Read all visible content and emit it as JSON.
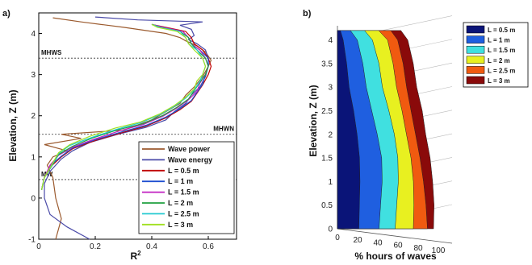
{
  "chart_data": [
    {
      "panel": "a)",
      "type": "line",
      "xlabel": "R",
      "xlabel_sup": "2",
      "ylabel": "Elevation, Z (m)",
      "xlim": [
        0,
        0.7
      ],
      "ylim": [
        -1,
        4.5
      ],
      "xticks": [
        "0",
        "0.2",
        "0.4",
        "0.6"
      ],
      "yticks": [
        "-1",
        "0",
        "1",
        "2",
        "3",
        "4"
      ],
      "reference_lines": [
        {
          "label": "MHWS",
          "y": 3.4,
          "label_side": "left"
        },
        {
          "label": "MHWN",
          "y": 1.55,
          "label_side": "right"
        },
        {
          "label": "MW",
          "y": 0.45,
          "label_side": "left"
        }
      ],
      "legend_position": "lower-right",
      "series": [
        {
          "name": "Wave power",
          "color": "#9b5a2e",
          "points": [
            [
              0.06,
              -1.0
            ],
            [
              0.08,
              -0.5
            ],
            [
              0.06,
              0.0
            ],
            [
              0.05,
              0.5
            ],
            [
              0.03,
              0.8
            ],
            [
              0.05,
              1.0
            ],
            [
              0.1,
              1.15
            ],
            [
              0.02,
              1.3
            ],
            [
              0.15,
              1.45
            ],
            [
              0.08,
              1.55
            ],
            [
              0.3,
              1.65
            ],
            [
              0.4,
              1.9
            ],
            [
              0.45,
              2.1
            ],
            [
              0.5,
              2.3
            ],
            [
              0.52,
              2.5
            ],
            [
              0.55,
              2.7
            ],
            [
              0.58,
              2.95
            ],
            [
              0.6,
              3.2
            ],
            [
              0.61,
              3.35
            ],
            [
              0.59,
              3.55
            ],
            [
              0.56,
              3.7
            ],
            [
              0.52,
              3.82
            ],
            [
              0.5,
              3.9
            ],
            [
              0.45,
              4.0
            ],
            [
              0.3,
              4.15
            ],
            [
              0.15,
              4.28
            ],
            [
              0.05,
              4.38
            ]
          ]
        },
        {
          "name": "Wave energy",
          "color": "#4a4aa8",
          "points": [
            [
              0.18,
              -1.0
            ],
            [
              0.1,
              -0.7
            ],
            [
              0.04,
              -0.4
            ],
            [
              0.02,
              0.0
            ],
            [
              0.02,
              0.35
            ],
            [
              0.04,
              0.65
            ],
            [
              0.08,
              0.95
            ],
            [
              0.12,
              1.15
            ],
            [
              0.18,
              1.35
            ],
            [
              0.28,
              1.55
            ],
            [
              0.38,
              1.72
            ],
            [
              0.45,
              1.9
            ],
            [
              0.48,
              2.1
            ],
            [
              0.52,
              2.3
            ],
            [
              0.54,
              2.5
            ],
            [
              0.57,
              2.7
            ],
            [
              0.59,
              2.95
            ],
            [
              0.6,
              3.2
            ],
            [
              0.6,
              3.4
            ],
            [
              0.59,
              3.6
            ],
            [
              0.56,
              3.75
            ],
            [
              0.53,
              3.85
            ],
            [
              0.55,
              3.95
            ],
            [
              0.54,
              4.1
            ],
            [
              0.5,
              4.2
            ],
            [
              0.58,
              4.28
            ],
            [
              0.35,
              4.33
            ],
            [
              0.2,
              4.4
            ]
          ]
        },
        {
          "name": "L = 0.5 m",
          "color": "#c00000",
          "points": [
            [
              0.01,
              0.2
            ],
            [
              0.02,
              0.5
            ],
            [
              0.04,
              0.75
            ],
            [
              0.08,
              1.0
            ],
            [
              0.12,
              1.2
            ],
            [
              0.2,
              1.4
            ],
            [
              0.3,
              1.6
            ],
            [
              0.38,
              1.75
            ],
            [
              0.45,
              1.95
            ],
            [
              0.5,
              2.15
            ],
            [
              0.54,
              2.35
            ],
            [
              0.56,
              2.55
            ],
            [
              0.58,
              2.75
            ],
            [
              0.6,
              3.0
            ],
            [
              0.61,
              3.2
            ],
            [
              0.6,
              3.4
            ],
            [
              0.58,
              3.6
            ],
            [
              0.55,
              3.75
            ],
            [
              0.54,
              3.9
            ],
            [
              0.52,
              4.05
            ],
            [
              0.45,
              4.15
            ],
            [
              0.4,
              4.22
            ]
          ]
        },
        {
          "name": "L = 1 m",
          "color": "#1f4fd0",
          "points": [
            [
              0.01,
              0.2
            ],
            [
              0.02,
              0.5
            ],
            [
              0.04,
              0.78
            ],
            [
              0.08,
              1.02
            ],
            [
              0.12,
              1.22
            ],
            [
              0.2,
              1.42
            ],
            [
              0.3,
              1.62
            ],
            [
              0.38,
              1.77
            ],
            [
              0.45,
              1.97
            ],
            [
              0.5,
              2.17
            ],
            [
              0.54,
              2.37
            ],
            [
              0.56,
              2.57
            ],
            [
              0.58,
              2.77
            ],
            [
              0.59,
              3.0
            ],
            [
              0.6,
              3.2
            ],
            [
              0.6,
              3.4
            ],
            [
              0.57,
              3.6
            ],
            [
              0.54,
              3.75
            ],
            [
              0.53,
              3.9
            ],
            [
              0.51,
              4.05
            ],
            [
              0.44,
              4.15
            ],
            [
              0.4,
              4.22
            ]
          ]
        },
        {
          "name": "L = 1.5 m",
          "color": "#c020c0",
          "points": [
            [
              0.01,
              0.2
            ],
            [
              0.02,
              0.5
            ],
            [
              0.04,
              0.8
            ],
            [
              0.07,
              1.04
            ],
            [
              0.12,
              1.24
            ],
            [
              0.2,
              1.44
            ],
            [
              0.29,
              1.64
            ],
            [
              0.37,
              1.79
            ],
            [
              0.44,
              1.99
            ],
            [
              0.49,
              2.19
            ],
            [
              0.53,
              2.39
            ],
            [
              0.56,
              2.59
            ],
            [
              0.57,
              2.79
            ],
            [
              0.59,
              3.0
            ],
            [
              0.6,
              3.2
            ],
            [
              0.59,
              3.4
            ],
            [
              0.57,
              3.6
            ],
            [
              0.54,
              3.75
            ],
            [
              0.53,
              3.9
            ],
            [
              0.51,
              4.05
            ],
            [
              0.44,
              4.15
            ],
            [
              0.4,
              4.22
            ]
          ]
        },
        {
          "name": "L = 2 m",
          "color": "#20a040",
          "points": [
            [
              0.01,
              0.2
            ],
            [
              0.02,
              0.5
            ],
            [
              0.05,
              0.82
            ],
            [
              0.07,
              1.06
            ],
            [
              0.12,
              1.26
            ],
            [
              0.19,
              1.46
            ],
            [
              0.28,
              1.66
            ],
            [
              0.37,
              1.81
            ],
            [
              0.44,
              2.01
            ],
            [
              0.49,
              2.21
            ],
            [
              0.53,
              2.41
            ],
            [
              0.55,
              2.61
            ],
            [
              0.57,
              2.81
            ],
            [
              0.59,
              3.0
            ],
            [
              0.6,
              3.2
            ],
            [
              0.59,
              3.4
            ],
            [
              0.56,
              3.6
            ],
            [
              0.54,
              3.75
            ],
            [
              0.53,
              3.9
            ],
            [
              0.5,
              4.05
            ],
            [
              0.43,
              4.15
            ],
            [
              0.4,
              4.22
            ]
          ]
        },
        {
          "name": "L = 2.5 m",
          "color": "#20c8d0",
          "points": [
            [
              0.01,
              0.2
            ],
            [
              0.02,
              0.5
            ],
            [
              0.05,
              0.84
            ],
            [
              0.07,
              1.08
            ],
            [
              0.11,
              1.28
            ],
            [
              0.19,
              1.48
            ],
            [
              0.28,
              1.68
            ],
            [
              0.36,
              1.83
            ],
            [
              0.43,
              2.03
            ],
            [
              0.48,
              2.23
            ],
            [
              0.52,
              2.43
            ],
            [
              0.55,
              2.63
            ],
            [
              0.57,
              2.83
            ],
            [
              0.58,
              3.0
            ],
            [
              0.59,
              3.2
            ],
            [
              0.58,
              3.4
            ],
            [
              0.56,
              3.6
            ],
            [
              0.53,
              3.75
            ],
            [
              0.52,
              3.9
            ],
            [
              0.5,
              4.05
            ],
            [
              0.43,
              4.15
            ],
            [
              0.4,
              4.22
            ]
          ]
        },
        {
          "name": "L = 3 m",
          "color": "#a0e020",
          "points": [
            [
              0.01,
              0.2
            ],
            [
              0.02,
              0.5
            ],
            [
              0.05,
              0.86
            ],
            [
              0.07,
              1.1
            ],
            [
              0.11,
              1.3
            ],
            [
              0.18,
              1.5
            ],
            [
              0.27,
              1.7
            ],
            [
              0.36,
              1.85
            ],
            [
              0.43,
              2.05
            ],
            [
              0.48,
              2.25
            ],
            [
              0.52,
              2.45
            ],
            [
              0.55,
              2.65
            ],
            [
              0.56,
              2.85
            ],
            [
              0.58,
              3.0
            ],
            [
              0.59,
              3.2
            ],
            [
              0.58,
              3.4
            ],
            [
              0.55,
              3.6
            ],
            [
              0.53,
              3.75
            ],
            [
              0.52,
              3.9
            ],
            [
              0.49,
              4.05
            ],
            [
              0.42,
              4.15
            ],
            [
              0.4,
              4.22
            ]
          ]
        }
      ]
    },
    {
      "panel": "b)",
      "type": "area",
      "xlabel": "% hours of waves",
      "ylabel": "Elevation, Z (m)",
      "ylim": [
        0,
        4.3
      ],
      "xlim": [
        0,
        100
      ],
      "xticks": [
        "0",
        "20",
        "40",
        "60",
        "80",
        "100"
      ],
      "yticks": [
        "0",
        "0.5",
        "1",
        "1.5",
        "2",
        "2.5",
        "3",
        "3.5",
        "4"
      ],
      "legend_position": "top-right",
      "z": [
        0,
        0.5,
        1,
        1.5,
        2,
        2.5,
        3,
        3.5,
        4,
        4.2
      ],
      "series": [
        {
          "name": "L = 0.5 m",
          "color": "#0a1478",
          "values": [
            26,
            26,
            26,
            25,
            22,
            18,
            13,
            10,
            6,
            3
          ]
        },
        {
          "name": "L = 1 m",
          "color": "#1f5fe0",
          "values": [
            46,
            47,
            48,
            47,
            42,
            36,
            30,
            26,
            20,
            13
          ]
        },
        {
          "name": "L = 1.5 m",
          "color": "#40e0e0",
          "values": [
            62,
            63,
            64,
            63,
            59,
            53,
            46,
            42,
            35,
            27
          ]
        },
        {
          "name": "L = 2 m",
          "color": "#e8f020",
          "values": [
            80,
            80,
            79,
            76,
            71,
            66,
            60,
            56,
            50,
            41
          ]
        },
        {
          "name": "L = 2.5 m",
          "color": "#f05a10",
          "values": [
            94,
            92,
            89,
            85,
            80,
            75,
            70,
            66,
            60,
            53
          ]
        },
        {
          "name": "L = 3 m",
          "color": "#8a0a0a",
          "values": [
            100,
            100,
            98,
            95,
            90,
            86,
            80,
            76,
            70,
            63
          ]
        }
      ]
    }
  ]
}
